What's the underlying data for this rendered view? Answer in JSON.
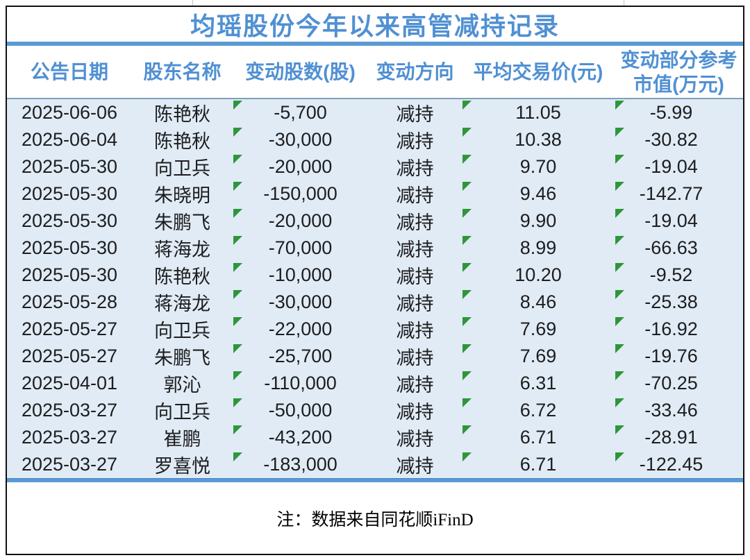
{
  "title": "均瑶股份今年以来高管减持记录",
  "header": {
    "cols": [
      {
        "key": "date",
        "label": "公告日期"
      },
      {
        "key": "name",
        "label": "股东名称"
      },
      {
        "key": "shares",
        "label": "变动股数(股)"
      },
      {
        "key": "direction",
        "label": "变动方向"
      },
      {
        "key": "price",
        "label": "平均交易价(元)"
      },
      {
        "key": "value",
        "label": "变动部分参考",
        "label2": "市值(万元)"
      }
    ]
  },
  "marker_columns": [
    "shares",
    "price",
    "value"
  ],
  "rows": [
    {
      "date": "2025-06-06",
      "name": "陈艳秋",
      "shares": "-5,700",
      "direction": "减持",
      "price": "11.05",
      "value": "-5.99"
    },
    {
      "date": "2025-06-04",
      "name": "陈艳秋",
      "shares": "-30,000",
      "direction": "减持",
      "price": "10.38",
      "value": "-30.82"
    },
    {
      "date": "2025-05-30",
      "name": "向卫兵",
      "shares": "-20,000",
      "direction": "减持",
      "price": "9.70",
      "value": "-19.04"
    },
    {
      "date": "2025-05-30",
      "name": "朱晓明",
      "shares": "-150,000",
      "direction": "减持",
      "price": "9.46",
      "value": "-142.77"
    },
    {
      "date": "2025-05-30",
      "name": "朱鹏飞",
      "shares": "-20,000",
      "direction": "减持",
      "price": "9.90",
      "value": "-19.04"
    },
    {
      "date": "2025-05-30",
      "name": "蒋海龙",
      "shares": "-70,000",
      "direction": "减持",
      "price": "8.99",
      "value": "-66.63"
    },
    {
      "date": "2025-05-30",
      "name": "陈艳秋",
      "shares": "-10,000",
      "direction": "减持",
      "price": "10.20",
      "value": "-9.52"
    },
    {
      "date": "2025-05-28",
      "name": "蒋海龙",
      "shares": "-30,000",
      "direction": "减持",
      "price": "8.46",
      "value": "-25.38"
    },
    {
      "date": "2025-05-27",
      "name": "向卫兵",
      "shares": "-22,000",
      "direction": "减持",
      "price": "7.69",
      "value": "-16.92"
    },
    {
      "date": "2025-05-27",
      "name": "朱鹏飞",
      "shares": "-25,700",
      "direction": "减持",
      "price": "7.69",
      "value": "-19.76"
    },
    {
      "date": "2025-04-01",
      "name": "郭沁",
      "shares": "-110,000",
      "direction": "减持",
      "price": "6.31",
      "value": "-70.25"
    },
    {
      "date": "2025-03-27",
      "name": "向卫兵",
      "shares": "-50,000",
      "direction": "减持",
      "price": "6.72",
      "value": "-33.46"
    },
    {
      "date": "2025-03-27",
      "name": "崔鹏",
      "shares": "-43,200",
      "direction": "减持",
      "price": "6.71",
      "value": "-28.91"
    },
    {
      "date": "2025-03-27",
      "name": "罗喜悦",
      "shares": "-183,000",
      "direction": "减持",
      "price": "6.71",
      "value": "-122.45"
    }
  ],
  "footer": {
    "note": "注：数据来自同花顺iFinD"
  },
  "colors": {
    "accent_blue": "#5b9bd5",
    "header_text_blue": "#5090d3",
    "row_background": "#e0ebf5",
    "marker_green": "#2e9639",
    "border_black": "#111111",
    "header_divider": "#7d9dbd"
  }
}
